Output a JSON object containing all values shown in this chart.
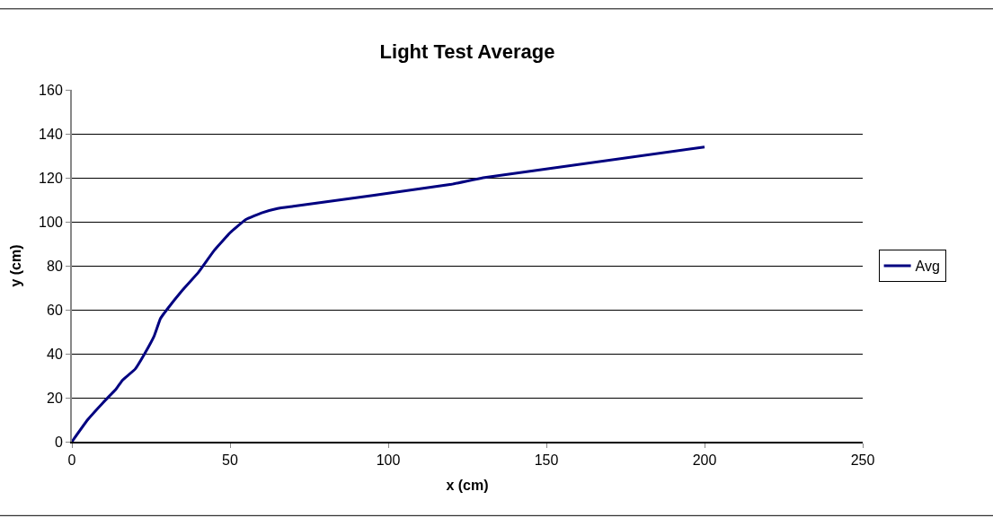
{
  "chart_data": {
    "type": "line",
    "title": "Light Test Average",
    "xlabel": "x (cm)",
    "ylabel": "y (cm)",
    "x": [
      0,
      5,
      10,
      14,
      16,
      20,
      23,
      26,
      28,
      30,
      35,
      40,
      45,
      50,
      55,
      60,
      65,
      70,
      120,
      130,
      200
    ],
    "series": [
      {
        "name": "Avg",
        "color": "#000080",
        "values": [
          0,
          10,
          18,
          24,
          28,
          33,
          40,
          48,
          56,
          60,
          69,
          77,
          87,
          95,
          101,
          104,
          106,
          107,
          117,
          120,
          134
        ]
      }
    ],
    "xlim": [
      0,
      250
    ],
    "xticks": [
      0,
      50,
      100,
      150,
      200,
      250
    ],
    "ylim": [
      0,
      160
    ],
    "yticks": [
      0,
      20,
      40,
      60,
      80,
      100,
      120,
      140,
      160
    ],
    "grid": "y",
    "legend": "right",
    "marker": "none",
    "line_style": "solid"
  }
}
